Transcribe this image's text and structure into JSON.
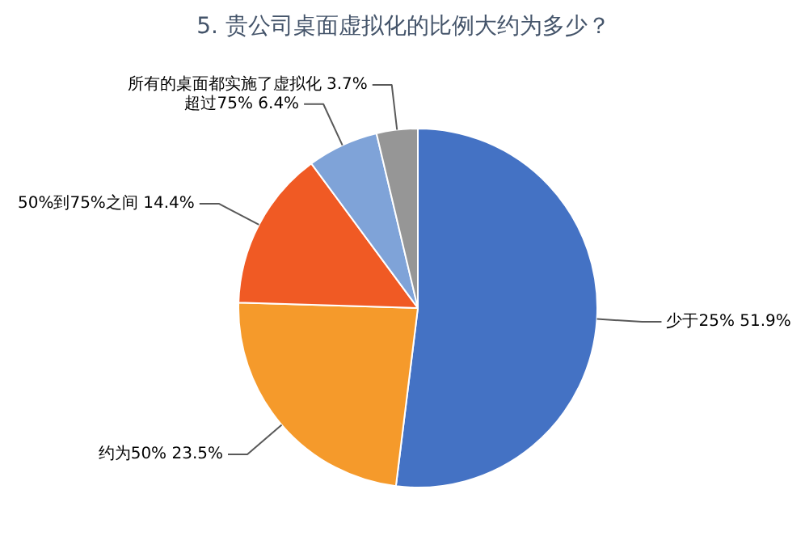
{
  "chart_data": {
    "type": "pie",
    "title": "5. 贵公司桌面虚拟化的比例大约为多少？",
    "categories": [
      "少于25%",
      "约为50%",
      "50%到75%之间",
      "超过75%",
      "所有的桌面都实施了虚拟化"
    ],
    "values": [
      51.9,
      23.5,
      14.4,
      6.4,
      3.7
    ],
    "value_labels": [
      "51.9%",
      "23.5%",
      "14.4%",
      "6.4%",
      "3.7%"
    ],
    "colors": [
      "#4472c4",
      "#f59a2b",
      "#f05a24",
      "#7fa3d8",
      "#969696"
    ]
  }
}
